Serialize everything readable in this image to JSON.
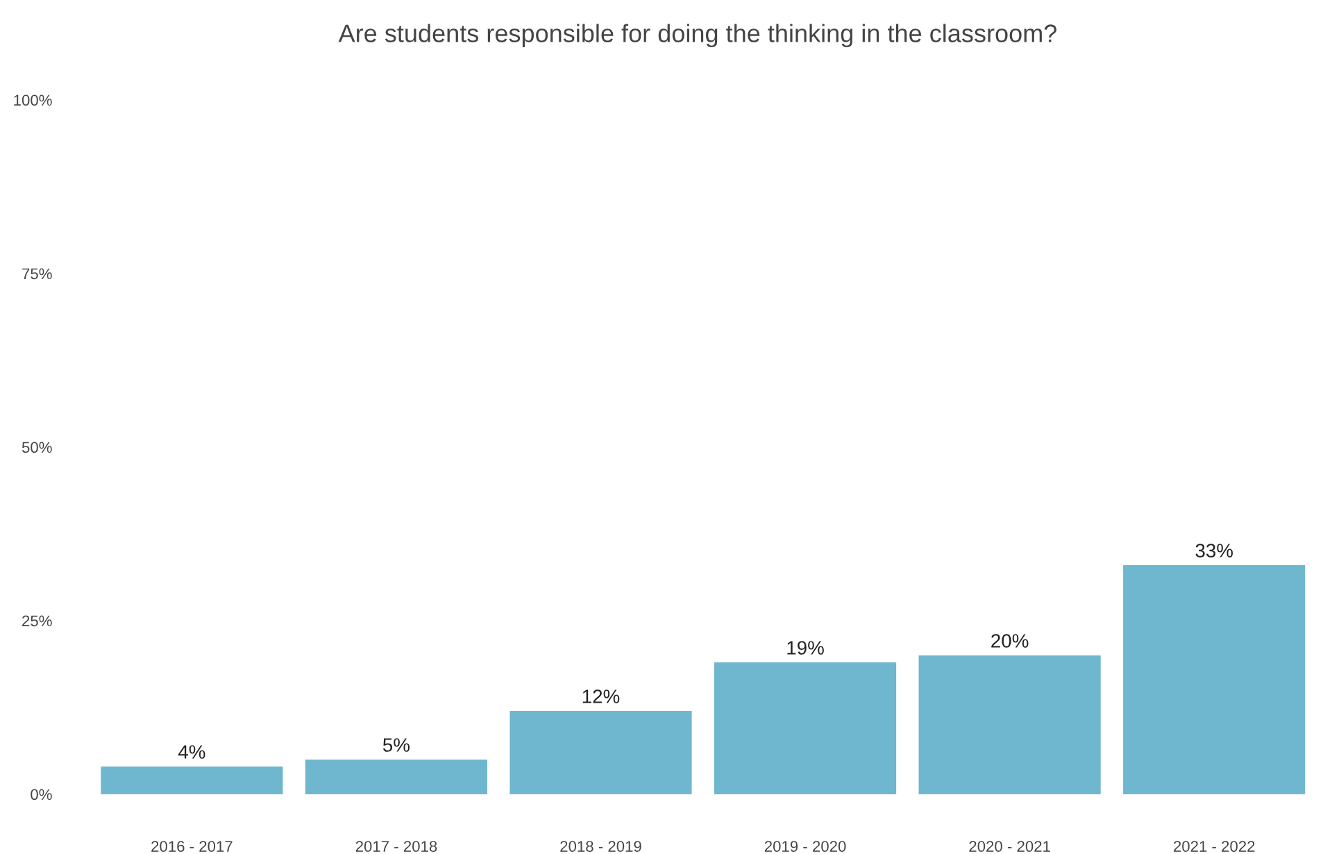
{
  "chart_data": {
    "type": "bar",
    "title": "Are students responsible for doing the thinking in the classroom?",
    "categories": [
      "2016 - 2017",
      "2017 - 2018",
      "2018 - 2019",
      "2019 - 2020",
      "2020 - 2021",
      "2021 - 2022"
    ],
    "values": [
      4,
      5,
      12,
      19,
      20,
      33
    ],
    "value_labels": [
      "4%",
      "5%",
      "12%",
      "19%",
      "20%",
      "33%"
    ],
    "color": "#6fb6cf",
    "ylim": [
      0,
      100
    ],
    "yticks": [
      {
        "value": 0,
        "label": "0%"
      },
      {
        "value": 25,
        "label": "25%"
      },
      {
        "value": 50,
        "label": "50%"
      },
      {
        "value": 75,
        "label": "75%"
      },
      {
        "value": 100,
        "label": "100%"
      }
    ],
    "grid": false,
    "legend": false
  }
}
